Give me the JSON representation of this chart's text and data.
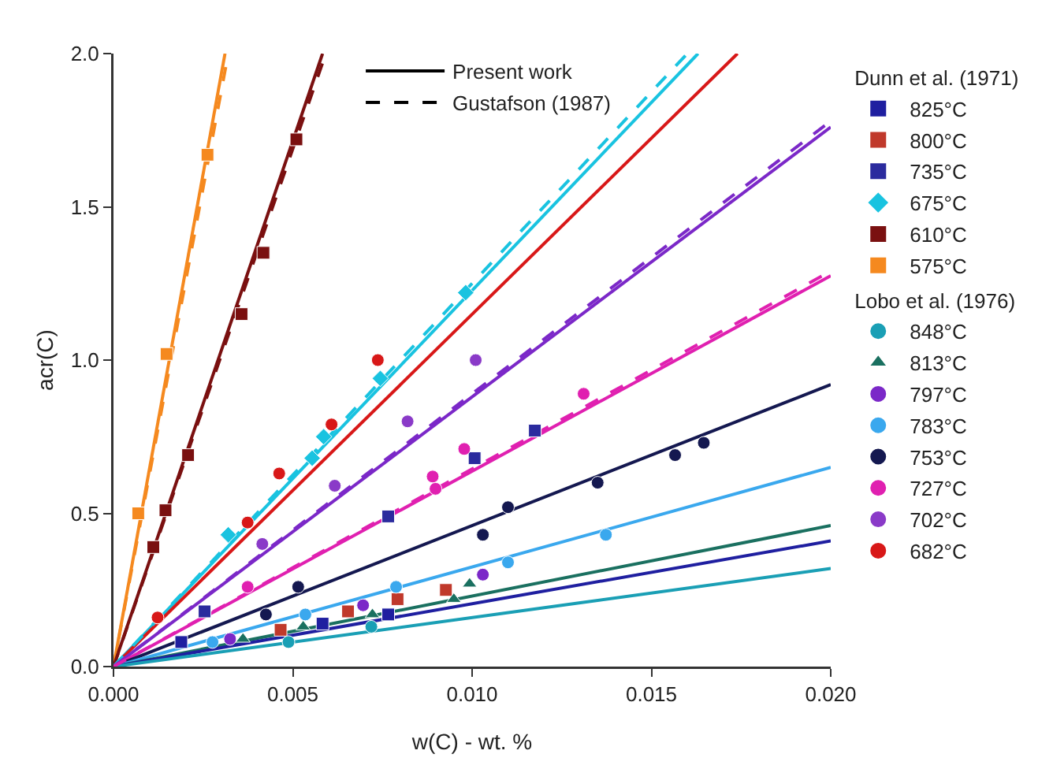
{
  "chart_data": {
    "type": "scatter",
    "xlabel": "w(C) - wt. %",
    "ylabel": "acr(C)",
    "legend_title": "Dunn et al. (1971)",
    "annotations": [
      "Lobo et al. (1976)"
    ],
    "xlim": [
      0,
      0.02
    ],
    "ylim": [
      0,
      2.0
    ],
    "xticks": [
      {
        "value": 0,
        "label": "0.000"
      },
      {
        "value": 0.005,
        "label": "0.005"
      },
      {
        "value": 0.01,
        "label": "0.010"
      },
      {
        "value": 0.015,
        "label": "0.015"
      },
      {
        "value": 0.02,
        "label": "0.020"
      }
    ],
    "yticks": [
      {
        "value": 0,
        "label": "0.0"
      },
      {
        "value": 0.5,
        "label": "0.5"
      },
      {
        "value": 1,
        "label": "1.0"
      },
      {
        "value": 1.5,
        "label": "1.5"
      },
      {
        "value": 2,
        "label": "2.0"
      }
    ],
    "grid": false,
    "legend": "right",
    "series": [
      {
        "type": "line",
        "color": "#f5891f",
        "line_style": "solid",
        "x": [
          0,
          0.00311
        ],
        "values": [
          0,
          2.0
        ]
      },
      {
        "type": "line",
        "color": "#7a1010",
        "line_style": "solid",
        "x": [
          0,
          0.00583
        ],
        "values": [
          0,
          2.0
        ]
      },
      {
        "type": "line",
        "color": "#19c3e0",
        "line_style": "solid",
        "x": [
          0,
          0.0163
        ],
        "values": [
          0,
          2.0
        ]
      },
      {
        "type": "line",
        "color": "#d81818",
        "line_style": "solid",
        "x": [
          0,
          0.0174
        ],
        "values": [
          0,
          2.0
        ]
      },
      {
        "type": "line",
        "color": "#7b28c8",
        "line_style": "solid",
        "x": [
          0,
          0.02
        ],
        "values": [
          0,
          1.76
        ]
      },
      {
        "type": "line",
        "color": "#e020b0",
        "line_style": "solid",
        "x": [
          0,
          0.02
        ],
        "values": [
          0,
          1.275
        ]
      },
      {
        "type": "line",
        "color": "#141850",
        "line_style": "solid",
        "x": [
          0,
          0.02
        ],
        "values": [
          0,
          0.92
        ]
      },
      {
        "type": "line",
        "color": "#3aa8ee",
        "line_style": "solid",
        "x": [
          0,
          0.02
        ],
        "values": [
          0,
          0.65
        ]
      },
      {
        "type": "line",
        "color": "#1a7060",
        "line_style": "solid",
        "x": [
          0,
          0.02
        ],
        "values": [
          0,
          0.46
        ]
      },
      {
        "type": "line",
        "color": "#1f1fa0",
        "line_style": "solid",
        "x": [
          0,
          0.02
        ],
        "values": [
          0,
          0.41
        ]
      },
      {
        "type": "line",
        "color": "#1a9fb5",
        "line_style": "solid",
        "x": [
          0,
          0.02
        ],
        "values": [
          0,
          0.32
        ]
      },
      {
        "type": "line",
        "color": "#f5891f",
        "line_style": "dashed",
        "x": [
          0,
          0.0032
        ],
        "values": [
          0,
          2.0
        ]
      },
      {
        "type": "line",
        "color": "#7a1010",
        "line_style": "dashed",
        "x": [
          0,
          0.00592
        ],
        "values": [
          0,
          2.0
        ]
      },
      {
        "type": "line",
        "color": "#19c3e0",
        "line_style": "dashed",
        "x": [
          0,
          0.016
        ],
        "values": [
          0,
          2.0
        ]
      },
      {
        "type": "line",
        "color": "#7b28c8",
        "line_style": "dashed",
        "x": [
          0,
          0.02
        ],
        "values": [
          0,
          1.78
        ]
      },
      {
        "type": "line",
        "color": "#e020b0",
        "line_style": "dashed",
        "x": [
          0,
          0.02
        ],
        "values": [
          0,
          1.29
        ]
      },
      {
        "type": "line",
        "name": "Present work",
        "color": "#000000",
        "line_style": "solid"
      },
      {
        "type": "line",
        "name": "Gustafson (1987)",
        "color": "#000000",
        "line_style": "dashed"
      },
      {
        "name": "825°C",
        "color": "#1f1fa0",
        "marker": "square",
        "x": [
          0.00189,
          0.00583,
          0.00766
        ],
        "values": [
          0.08,
          0.14,
          0.17
        ]
      },
      {
        "name": "800°C",
        "color": "#c0392b",
        "marker": "square",
        "x": [
          0.00466,
          0.00654,
          0.00792,
          0.00927
        ],
        "values": [
          0.12,
          0.18,
          0.22,
          0.25
        ]
      },
      {
        "name": "735°C",
        "color": "#2b2b9e",
        "marker": "square",
        "x": [
          0.00254,
          0.00766,
          0.01007,
          0.01175
        ],
        "values": [
          0.18,
          0.49,
          0.68,
          0.77
        ]
      },
      {
        "name": "675°C",
        "color": "#19c3e0",
        "marker": "diamond",
        "x": [
          0.0032,
          0.00554,
          0.00586,
          0.00744,
          0.00982
        ],
        "values": [
          0.43,
          0.68,
          0.75,
          0.94,
          1.22
        ]
      },
      {
        "name": "610°C",
        "color": "#7a1010",
        "marker": "square",
        "x": [
          0.00111,
          0.00145,
          0.00208,
          0.00357,
          0.00418,
          0.0051
        ],
        "values": [
          0.39,
          0.51,
          0.69,
          1.15,
          1.35,
          1.72
        ]
      },
      {
        "name": "575°C",
        "color": "#f5891f",
        "marker": "square",
        "x": [
          0.00069,
          0.00148,
          0.00262
        ],
        "values": [
          0.5,
          1.02,
          1.67
        ]
      },
      {
        "name": "848°C",
        "color": "#1a9fb5",
        "marker": "circle",
        "x": [
          0.00488,
          0.00719
        ],
        "values": [
          0.08,
          0.13
        ]
      },
      {
        "name": "813°C",
        "color": "#1a7060",
        "marker": "triangle",
        "x": [
          0.00361,
          0.00529,
          0.00722,
          0.00949,
          0.00993
        ],
        "values": [
          0.09,
          0.13,
          0.17,
          0.22,
          0.27
        ]
      },
      {
        "name": "797°C",
        "color": "#7b28c8",
        "marker": "circle",
        "x": [
          0.00325,
          0.00696,
          0.0103
        ],
        "values": [
          0.09,
          0.2,
          0.3
        ]
      },
      {
        "name": "783°C",
        "color": "#3aa8ee",
        "marker": "circle",
        "x": [
          0.00276,
          0.00535,
          0.00788,
          0.011,
          0.01373
        ],
        "values": [
          0.08,
          0.17,
          0.26,
          0.34,
          0.43
        ]
      },
      {
        "name": "753°C",
        "color": "#141850",
        "marker": "circle",
        "x": [
          0.00425,
          0.00515,
          0.0103,
          0.011,
          0.0135,
          0.01566,
          0.01646
        ],
        "values": [
          0.17,
          0.26,
          0.43,
          0.52,
          0.6,
          0.69,
          0.73
        ]
      },
      {
        "name": "727°C",
        "color": "#e020b0",
        "marker": "circle",
        "x": [
          0.00374,
          0.0089,
          0.00898,
          0.00978,
          0.01311
        ],
        "values": [
          0.26,
          0.62,
          0.58,
          0.71,
          0.89
        ]
      },
      {
        "name": "702°C",
        "color": "#8a3ac8",
        "marker": "circle",
        "x": [
          0.00415,
          0.00617,
          0.0082,
          0.0101
        ],
        "values": [
          0.4,
          0.59,
          0.8,
          1.0
        ]
      },
      {
        "name": "682°C",
        "color": "#d81818",
        "marker": "circle",
        "x": [
          0.00123,
          0.00374,
          0.00462,
          0.00608,
          0.00737
        ],
        "values": [
          0.16,
          0.47,
          0.63,
          0.79,
          1.0
        ]
      }
    ]
  }
}
